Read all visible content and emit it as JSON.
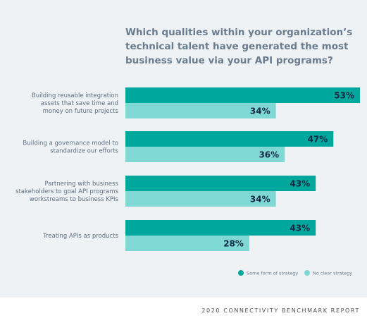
{
  "chart_data": {
    "type": "bar",
    "orientation": "horizontal",
    "title": "Which qualities within your organization’s technical talent have generated the most business value via your API programs?",
    "categories": [
      [
        "Building reusable integration",
        "assets that save time and",
        "money on future projects"
      ],
      [
        "Building a governance model to",
        "standardize our efforts"
      ],
      [
        "Partnering with business",
        "stakeholders to goal API programs",
        "workstreams to business KPIs"
      ],
      [
        "Treating APIs as products"
      ]
    ],
    "series": [
      {
        "name": "Some form of strategy",
        "values": [
          53,
          47,
          43,
          43
        ],
        "labels": [
          "53%",
          "47%",
          "43%",
          "43%"
        ],
        "color": "#00a79d"
      },
      {
        "name": "No clear strategy",
        "values": [
          34,
          36,
          34,
          28
        ],
        "labels": [
          "34%",
          "36%",
          "34%",
          "28%"
        ],
        "color": "#7fd8d3"
      }
    ],
    "xlim": [
      0,
      53
    ],
    "grid": false,
    "legend": "bottom-right"
  },
  "footer": "2020 Connectivity Benchmark Report"
}
